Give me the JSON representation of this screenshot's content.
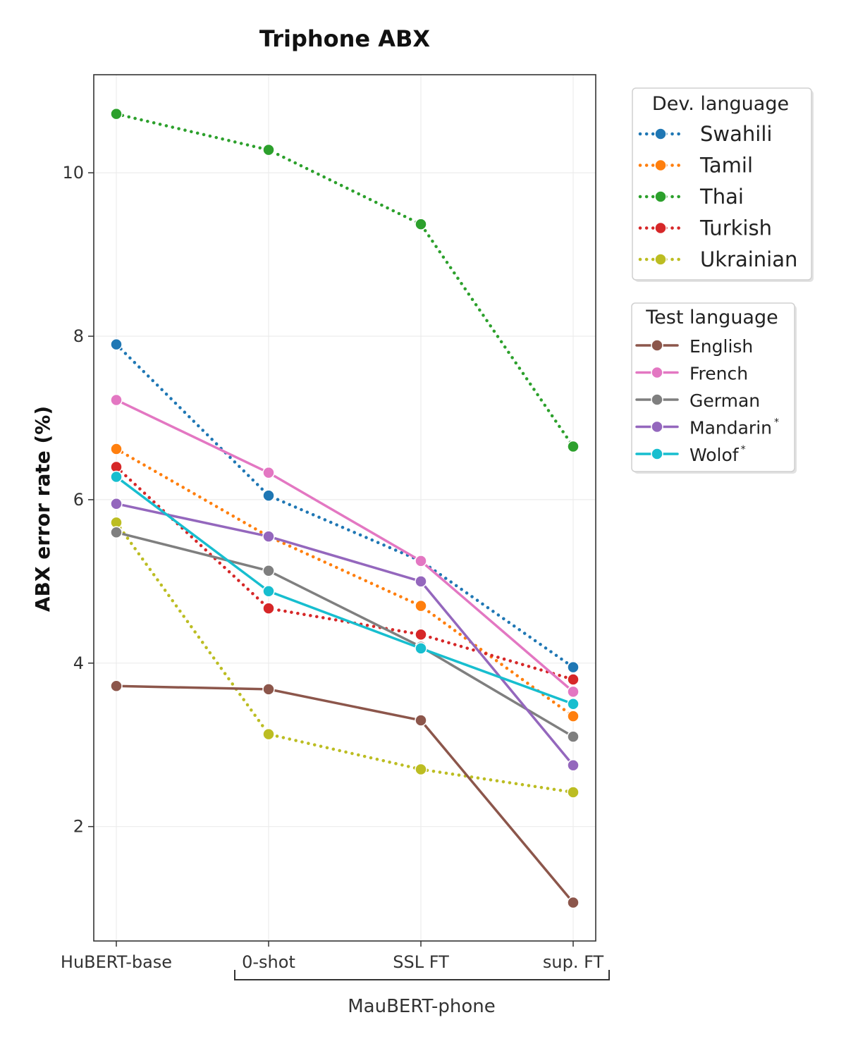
{
  "chart_data": {
    "type": "line",
    "title": "Triphone ABX",
    "xlabel": "",
    "ylabel": "ABX error rate (%)",
    "categories": [
      "HuBERT-base",
      "0-shot",
      "SSL FT",
      "sup. FT"
    ],
    "x_group_label": "MauBERT-phone",
    "ylim": [
      0.6,
      11.2
    ],
    "yticks": [
      2,
      4,
      6,
      8,
      10
    ],
    "grid": true,
    "legends": [
      {
        "title": "Dev. language",
        "placement": "top-right-outside",
        "line_style": "dotted",
        "series": [
          {
            "name": "Swahili",
            "color": "#1f77b4",
            "values": [
              7.9,
              6.05,
              5.25,
              3.95
            ]
          },
          {
            "name": "Tamil",
            "color": "#ff7f0e",
            "values": [
              6.62,
              5.55,
              4.7,
              3.35
            ]
          },
          {
            "name": "Thai",
            "color": "#2ca02c",
            "values": [
              10.72,
              10.28,
              9.37,
              6.65
            ]
          },
          {
            "name": "Turkish",
            "color": "#d62728",
            "values": [
              6.4,
              4.67,
              4.35,
              3.8
            ]
          },
          {
            "name": "Ukrainian",
            "color": "#bcbd22",
            "values": [
              5.72,
              3.13,
              2.7,
              2.42
            ]
          }
        ]
      },
      {
        "title": "Test language",
        "placement": "right-outside",
        "line_style": "solid",
        "series": [
          {
            "name": "English",
            "color": "#8c564b",
            "values": [
              3.72,
              3.68,
              3.3,
              1.07
            ]
          },
          {
            "name": "French",
            "color": "#e377c2",
            "values": [
              7.22,
              6.33,
              5.25,
              3.65
            ]
          },
          {
            "name": "German",
            "color": "#7f7f7f",
            "values": [
              5.6,
              5.13,
              4.2,
              3.1
            ]
          },
          {
            "name": "Mandarin",
            "marker_note": "*",
            "color": "#9467bd",
            "values": [
              5.95,
              5.55,
              5.0,
              2.75
            ]
          },
          {
            "name": "Wolof",
            "marker_note": "*",
            "color": "#17becf",
            "values": [
              6.28,
              4.88,
              4.18,
              3.5
            ]
          }
        ]
      }
    ]
  }
}
